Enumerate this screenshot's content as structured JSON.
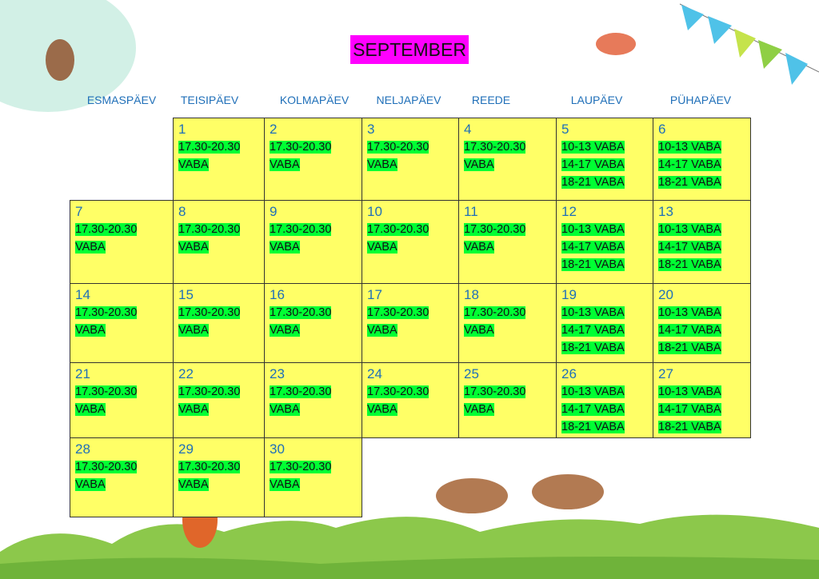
{
  "header": {
    "title": "SEPTEMBER"
  },
  "weekdays": [
    "ESMASPÄEV",
    "TEISIPÄEV",
    "KOLMAPÄEV",
    "NELJAPÄEV",
    "REEDE",
    "LAUPÄEV",
    "PÜHAPÄEV"
  ],
  "weeks": [
    [
      null,
      {
        "day": 1,
        "slots": [
          "17.30-20.30",
          "VABA"
        ]
      },
      {
        "day": 2,
        "slots": [
          "17.30-20.30",
          "VABA"
        ]
      },
      {
        "day": 3,
        "slots": [
          "17.30-20.30",
          "VABA"
        ]
      },
      {
        "day": 4,
        "slots": [
          "17.30-20.30",
          "VABA"
        ]
      },
      {
        "day": 5,
        "slots": [
          "10-13 VABA",
          "14-17 VABA",
          "18-21 VABA"
        ]
      },
      {
        "day": 6,
        "slots": [
          "10-13 VABA",
          "14-17 VABA",
          "18-21 VABA"
        ]
      }
    ],
    [
      {
        "day": 7,
        "slots": [
          "17.30-20.30",
          "VABA"
        ]
      },
      {
        "day": 8,
        "slots": [
          "17.30-20.30",
          "VABA"
        ]
      },
      {
        "day": 9,
        "slots": [
          "17.30-20.30",
          "VABA"
        ]
      },
      {
        "day": 10,
        "slots": [
          "17.30-20.30",
          "VABA"
        ]
      },
      {
        "day": 11,
        "slots": [
          "17.30-20.30",
          "VABA"
        ]
      },
      {
        "day": 12,
        "slots": [
          "10-13 VABA",
          "14-17 VABA",
          "18-21 VABA"
        ]
      },
      {
        "day": 13,
        "slots": [
          "10-13 VABA",
          "14-17 VABA",
          "18-21 VABA"
        ]
      }
    ],
    [
      {
        "day": 14,
        "slots": [
          "17.30-20.30",
          "VABA"
        ]
      },
      {
        "day": 15,
        "slots": [
          "17.30-20.30",
          "VABA"
        ]
      },
      {
        "day": 16,
        "slots": [
          "17.30-20.30",
          "VABA"
        ]
      },
      {
        "day": 17,
        "slots": [
          "17.30-20.30",
          "VABA"
        ]
      },
      {
        "day": 18,
        "slots": [
          "17.30-20.30",
          "VABA"
        ]
      },
      {
        "day": 19,
        "slots": [
          "10-13 VABA",
          "14-17 VABA",
          "18-21 VABA"
        ]
      },
      {
        "day": 20,
        "slots": [
          "10-13 VABA",
          "14-17 VABA",
          "18-21 VABA"
        ]
      }
    ],
    [
      {
        "day": 21,
        "slots": [
          "17.30-20.30",
          "VABA"
        ]
      },
      {
        "day": 22,
        "slots": [
          "17.30-20.30",
          "VABA"
        ]
      },
      {
        "day": 23,
        "slots": [
          "17.30-20.30",
          "VABA"
        ]
      },
      {
        "day": 24,
        "slots": [
          "17.30-20.30",
          "VABA"
        ]
      },
      {
        "day": 25,
        "slots": [
          "17.30-20.30",
          "VABA"
        ]
      },
      {
        "day": 26,
        "slots": [
          "10-13 VABA",
          "14-17 VABA",
          "18-21 VABA"
        ]
      },
      {
        "day": 27,
        "slots": [
          "10-13 VABA",
          "14-17 VABA",
          "18-21 VABA"
        ]
      }
    ],
    [
      {
        "day": 28,
        "slots": [
          "17.30-20.30",
          "VABA"
        ]
      },
      {
        "day": 29,
        "slots": [
          "17.30-20.30",
          "VABA"
        ]
      },
      {
        "day": 30,
        "slots": [
          "17.30-20.30",
          "VABA"
        ]
      },
      null,
      null,
      null,
      null
    ]
  ]
}
